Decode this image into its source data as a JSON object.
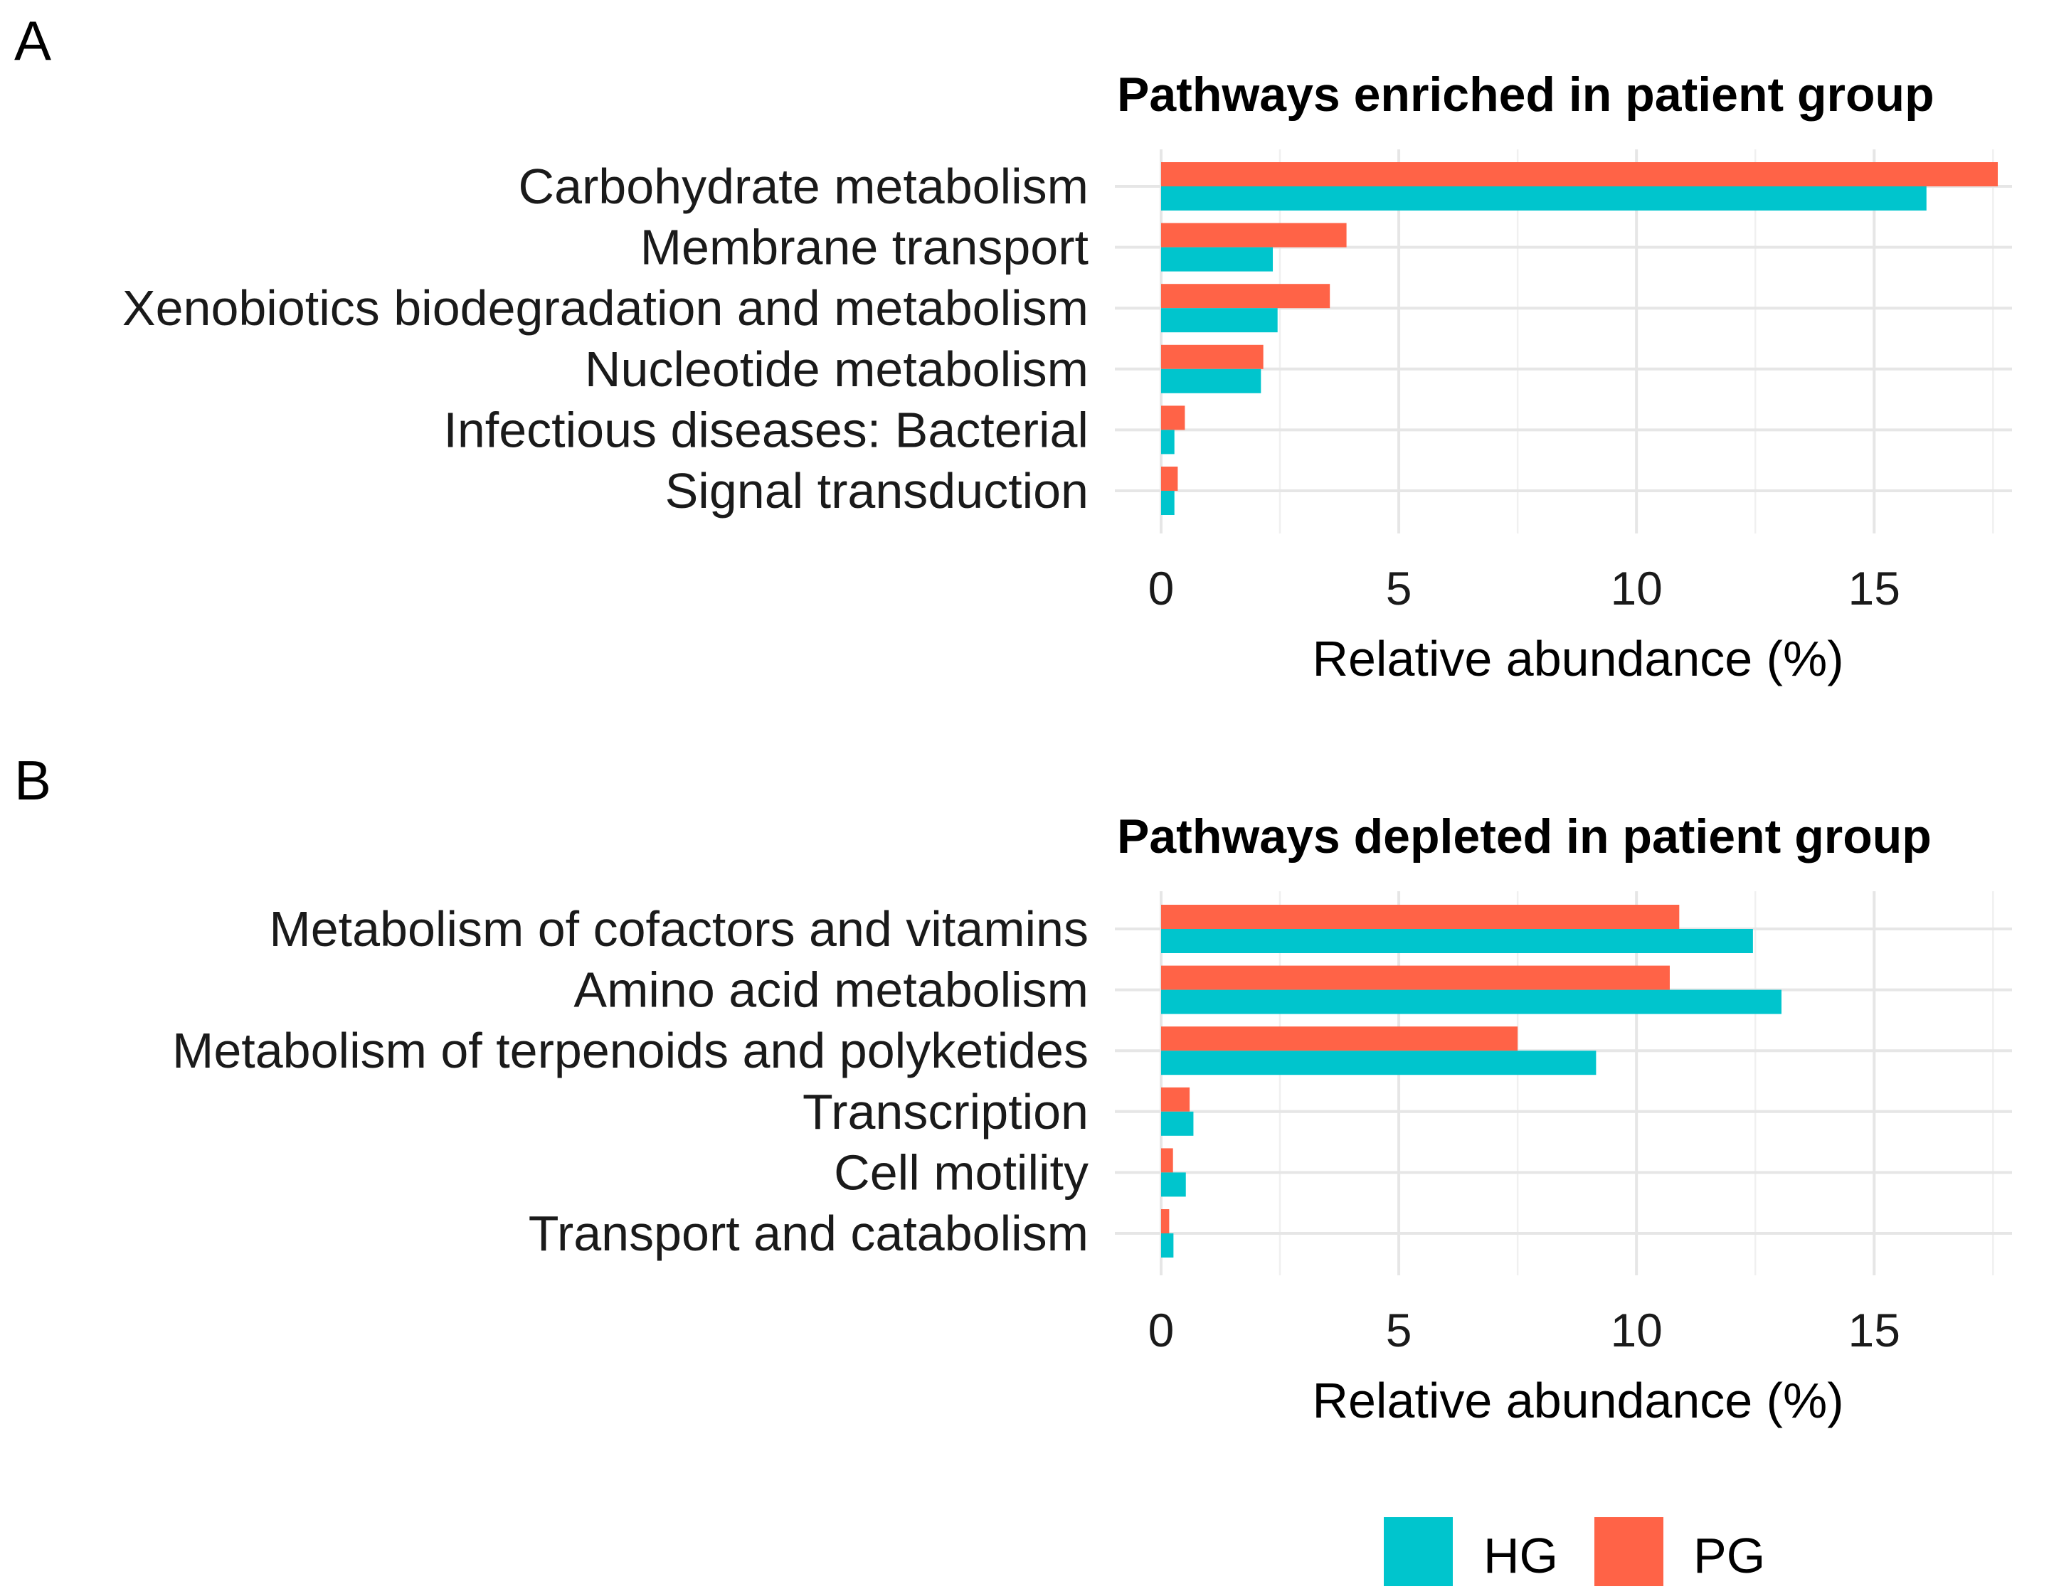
{
  "colors": {
    "HG": "#00C5CD",
    "PG": "#FF6347"
  },
  "legend": {
    "entries": [
      "HG",
      "PG"
    ]
  },
  "chart_data": [
    {
      "panel": "A",
      "type": "bar",
      "orientation": "horizontal",
      "title": "Pathways enriched in patient group",
      "xlabel": "Relative abundance (%)",
      "ylabel": "",
      "xlim": [
        0,
        17.6
      ],
      "xticks": [
        0,
        5,
        10,
        15
      ],
      "categories": [
        "Carbohydrate metabolism",
        "Membrane transport",
        "Xenobiotics biodegradation and metabolism",
        "Nucleotide metabolism",
        "Infectious diseases: Bacterial",
        "Signal transduction"
      ],
      "series": [
        {
          "name": "PG",
          "values": [
            17.6,
            3.9,
            3.55,
            2.15,
            0.5,
            0.35
          ]
        },
        {
          "name": "HG",
          "values": [
            16.1,
            2.35,
            2.45,
            2.1,
            0.28,
            0.28
          ]
        }
      ]
    },
    {
      "panel": "B",
      "type": "bar",
      "orientation": "horizontal",
      "title": "Pathways depleted in patient group",
      "xlabel": "Relative abundance (%)",
      "ylabel": "",
      "xlim": [
        0,
        17.6
      ],
      "xticks": [
        0,
        5,
        10,
        15
      ],
      "categories": [
        "Metabolism of cofactors and vitamins",
        "Amino acid metabolism",
        "Metabolism of terpenoids and polyketides",
        "Transcription",
        "Cell motility",
        "Transport and catabolism"
      ],
      "series": [
        {
          "name": "PG",
          "values": [
            10.9,
            10.7,
            7.5,
            0.6,
            0.25,
            0.17
          ]
        },
        {
          "name": "HG",
          "values": [
            12.45,
            13.05,
            9.15,
            0.68,
            0.52,
            0.26
          ]
        }
      ]
    }
  ]
}
